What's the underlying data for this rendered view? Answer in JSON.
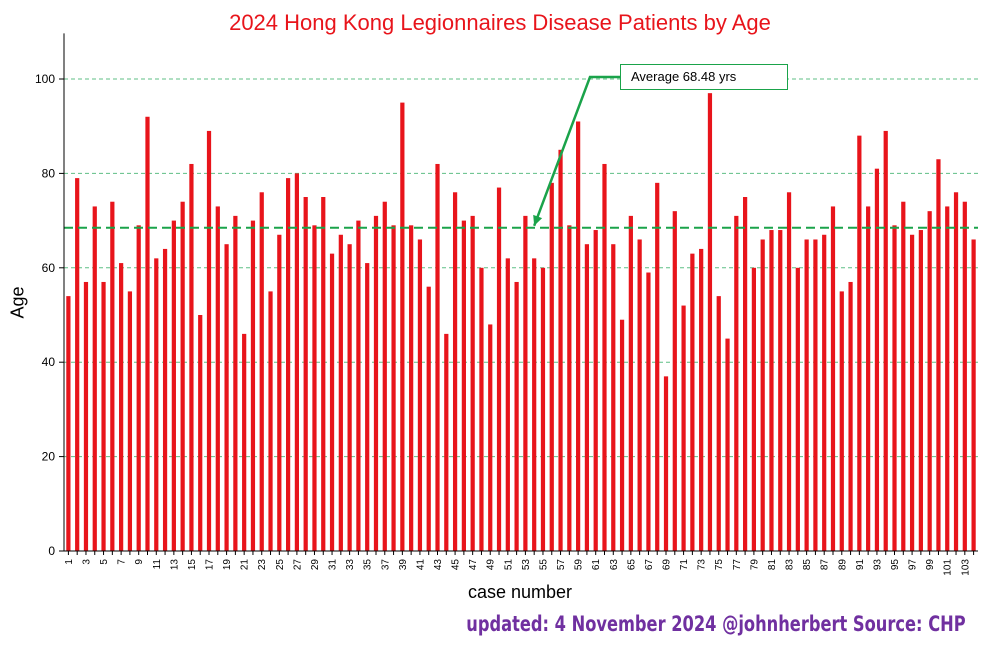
{
  "chart_data": {
    "type": "bar",
    "title": "2024 Hong Kong Legionnaires Disease Patients by Age",
    "xlabel": "case number",
    "ylabel": "Age",
    "ylim": [
      0,
      105
    ],
    "yticks": [
      0,
      20,
      40,
      60,
      80,
      100
    ],
    "grid": true,
    "bar_color": "#e8141b",
    "average": {
      "value": 68.48,
      "label": "Average 68.48 yrs",
      "color": "#1aa34a"
    },
    "x_tick_labels_shown": [
      "1",
      "3",
      "5",
      "7",
      "9",
      "11",
      "13",
      "15",
      "17",
      "19",
      "21",
      "23",
      "25",
      "27",
      "29",
      "31",
      "33",
      "35",
      "37",
      "39",
      "41",
      "43",
      "45",
      "47",
      "49",
      "51",
      "53",
      "55",
      "57",
      "59",
      "61",
      "63",
      "65",
      "67",
      "69",
      "71",
      "73",
      "75",
      "77",
      "79",
      "81",
      "83",
      "85",
      "87",
      "89",
      "91",
      "93",
      "95",
      "97",
      "99",
      "101",
      "103"
    ],
    "categories": [
      "1",
      "2",
      "3",
      "4",
      "5",
      "6",
      "7",
      "8",
      "9",
      "10",
      "11",
      "12",
      "13",
      "14",
      "15",
      "16",
      "17",
      "18",
      "19",
      "20",
      "21",
      "22",
      "23",
      "24",
      "25",
      "26",
      "27",
      "28",
      "29",
      "30",
      "31",
      "32",
      "33",
      "34",
      "35",
      "36",
      "37",
      "38",
      "39",
      "40",
      "41",
      "42",
      "43",
      "44",
      "45",
      "46",
      "47",
      "48",
      "49",
      "50",
      "51",
      "52",
      "53",
      "54",
      "55",
      "56",
      "57",
      "58",
      "59",
      "60",
      "61",
      "62",
      "63",
      "64",
      "65",
      "66",
      "67",
      "68",
      "69",
      "70",
      "71",
      "72",
      "73",
      "74",
      "75",
      "76",
      "77",
      "78",
      "79",
      "80",
      "81",
      "82",
      "83",
      "84",
      "85",
      "86",
      "87",
      "88",
      "89",
      "90",
      "91",
      "92",
      "93",
      "94",
      "95",
      "96",
      "97",
      "98",
      "99",
      "100",
      "101",
      "102",
      "103",
      "104"
    ],
    "values": [
      54,
      79,
      57,
      73,
      57,
      74,
      61,
      55,
      69,
      92,
      62,
      64,
      70,
      74,
      82,
      50,
      89,
      73,
      65,
      71,
      46,
      70,
      76,
      55,
      67,
      79,
      80,
      75,
      69,
      75,
      63,
      67,
      65,
      70,
      61,
      71,
      74,
      69,
      95,
      69,
      66,
      56,
      82,
      46,
      76,
      70,
      71,
      60,
      48,
      77,
      62,
      57,
      71,
      62,
      60,
      78,
      85,
      69,
      91,
      65,
      68,
      82,
      65,
      49,
      71,
      66,
      59,
      78,
      37,
      72,
      52,
      63,
      64,
      97,
      54,
      45,
      71,
      75,
      60,
      66,
      68,
      68,
      76,
      60,
      66,
      66,
      67,
      73,
      55,
      57,
      88,
      73,
      81,
      89,
      69,
      74,
      67,
      68,
      72,
      83,
      73,
      76,
      74,
      66
    ]
  },
  "footer": "updated: 4 November 2024 @johnherbert  Source: CHP"
}
